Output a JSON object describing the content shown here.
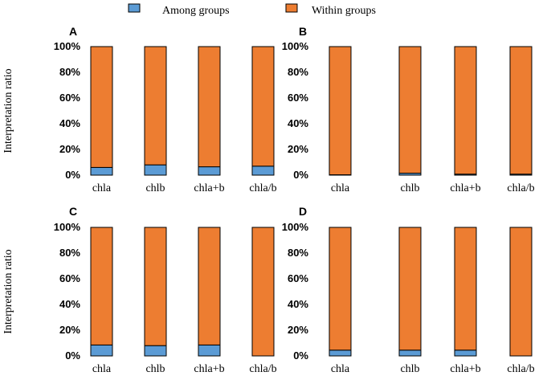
{
  "legend": {
    "items": [
      {
        "label": "Among groups",
        "color": "#5b9bd5"
      },
      {
        "label": "Within groups",
        "color": "#ed7d31"
      }
    ]
  },
  "ylabel": "Interpretation ratio",
  "chart_data": [
    {
      "type": "bar",
      "stacked": true,
      "panel": "A",
      "categories": [
        "chla",
        "chlb",
        "chla+b",
        "chla/b"
      ],
      "series": [
        {
          "name": "Among groups",
          "values": [
            6,
            8,
            6.5,
            7
          ]
        },
        {
          "name": "Within groups",
          "values": [
            94,
            92,
            93.5,
            93
          ]
        }
      ],
      "yticks": [
        "0%",
        "20%",
        "40%",
        "60%",
        "80%",
        "100%"
      ],
      "ylim": [
        0,
        100
      ]
    },
    {
      "type": "bar",
      "stacked": true,
      "panel": "B",
      "categories": [
        "chla",
        "chlb",
        "chla+b",
        "chla/b"
      ],
      "series": [
        {
          "name": "Among groups",
          "values": [
            0.3,
            1.5,
            0.8,
            0.8
          ]
        },
        {
          "name": "Within groups",
          "values": [
            99.7,
            98.5,
            99.2,
            99.2
          ]
        }
      ],
      "yticks": [
        "0%",
        "20%",
        "40%",
        "60%",
        "80%",
        "100%"
      ],
      "ylim": [
        0,
        100
      ]
    },
    {
      "type": "bar",
      "stacked": true,
      "panel": "C",
      "categories": [
        "chla",
        "chlb",
        "chla+b",
        "chla/b"
      ],
      "series": [
        {
          "name": "Among groups",
          "values": [
            8.5,
            8,
            8.5,
            0
          ]
        },
        {
          "name": "Within groups",
          "values": [
            91.5,
            92,
            91.5,
            100
          ]
        }
      ],
      "yticks": [
        "0%",
        "20%",
        "40%",
        "60%",
        "80%",
        "100%"
      ],
      "ylim": [
        0,
        100
      ]
    },
    {
      "type": "bar",
      "stacked": true,
      "panel": "D",
      "categories": [
        "chla",
        "chlb",
        "chla+b",
        "chla/b"
      ],
      "series": [
        {
          "name": "Among groups",
          "values": [
            4.5,
            4.5,
            4.5,
            0
          ]
        },
        {
          "name": "Within groups",
          "values": [
            95.5,
            95.5,
            95.5,
            100
          ]
        }
      ],
      "yticks": [
        "0%",
        "20%",
        "40%",
        "60%",
        "80%",
        "100%"
      ],
      "ylim": [
        0,
        100
      ]
    }
  ]
}
